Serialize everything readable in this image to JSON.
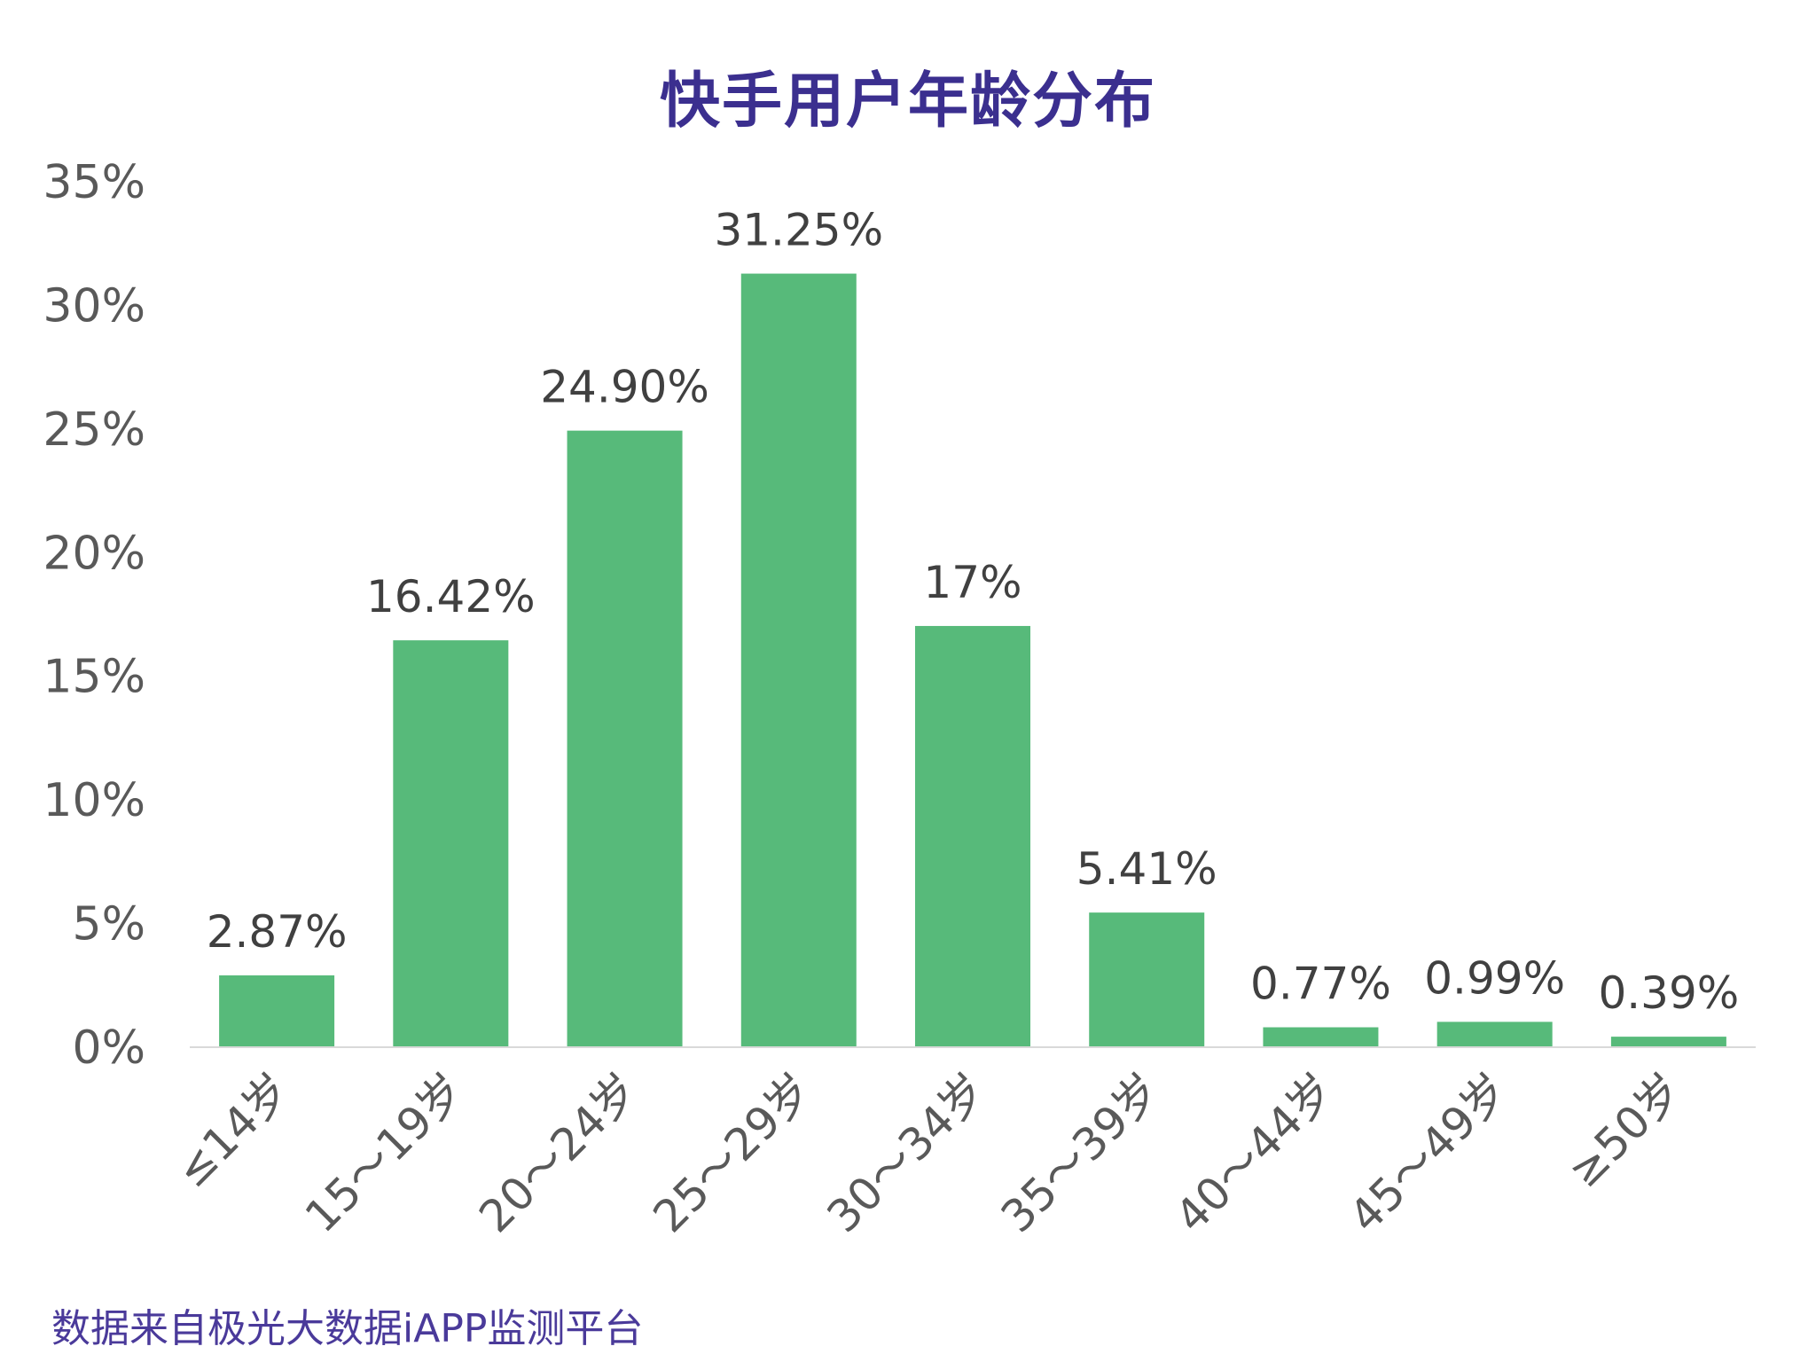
{
  "colors": {
    "bar": "#57ba7a",
    "title": "#3b2f8f",
    "source": "#4a3a9a",
    "axis_text": "#595959",
    "label_text": "#404040",
    "baseline": "#d9d9d9"
  },
  "source_note": "数据来自极光大数据iAPP监测平台",
  "chart_data": {
    "type": "bar",
    "title": "快手用户年龄分布",
    "xlabel": "",
    "ylabel": "",
    "categories": [
      "≤14岁",
      "15～19岁",
      "20～24岁",
      "25～29岁",
      "30～34岁",
      "35～39岁",
      "40～44岁",
      "45～49岁",
      "≥50岁"
    ],
    "values": [
      2.87,
      16.42,
      24.9,
      31.25,
      17,
      5.41,
      0.77,
      0.99,
      0.39
    ],
    "data_labels": [
      "2.87%",
      "16.42%",
      "24.90%",
      "31.25%",
      "17%",
      "5.41%",
      "0.77%",
      "0.99%",
      "0.39%"
    ],
    "ylim": [
      0,
      35
    ],
    "yticks": [
      0,
      5,
      10,
      15,
      20,
      25,
      30,
      35
    ],
    "ytick_labels": [
      "0%",
      "5%",
      "10%",
      "15%",
      "20%",
      "25%",
      "30%",
      "35%"
    ],
    "grid": false,
    "legend": "none"
  }
}
